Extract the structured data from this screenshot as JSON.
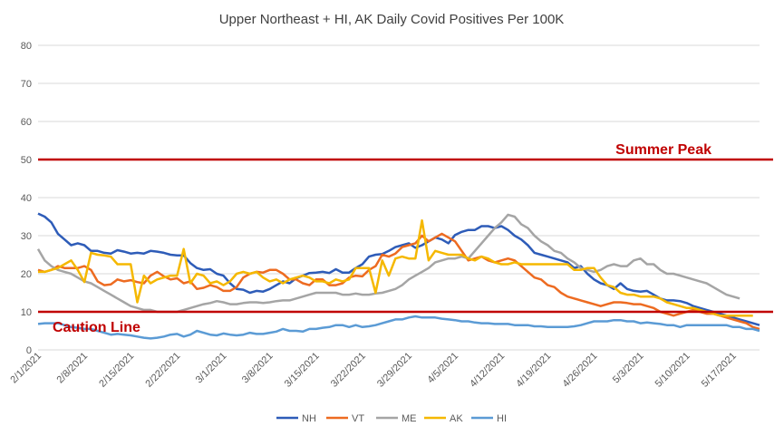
{
  "chart_data": {
    "type": "line",
    "title": "Upper Northeast + HI, AK Daily Covid Positives Per 100K",
    "xlabel": "",
    "ylabel": "",
    "ylim": [
      0,
      80
    ],
    "yticks": [
      0,
      10,
      20,
      30,
      40,
      50,
      60,
      70,
      80
    ],
    "grid": true,
    "legend": "bottom",
    "x_tick_labels": [
      "2/1/2021",
      "2/8/2021",
      "2/15/2021",
      "2/22/2021",
      "3/1/2021",
      "3/8/2021",
      "3/15/2021",
      "3/22/2021",
      "3/29/2021",
      "4/5/2021",
      "4/12/2021",
      "4/19/2021",
      "4/26/2021",
      "5/3/2021",
      "5/10/2021",
      "5/17/2021"
    ],
    "reference_lines": [
      {
        "label": "Summer Peak",
        "value": 50,
        "color": "#c00000"
      },
      {
        "label": "Caution Line",
        "value": 10,
        "color": "#c00000"
      }
    ],
    "series": [
      {
        "name": "NH",
        "color": "#2e5cb8",
        "values": [
          35.8,
          35,
          33.5,
          30.5,
          29,
          27.5,
          28,
          27.5,
          26,
          26,
          25.5,
          25.3,
          26.2,
          25.8,
          25.3,
          25.5,
          25.3,
          26,
          25.8,
          25.5,
          25,
          24.8,
          24.8,
          22.8,
          21.5,
          21,
          21.2,
          20,
          19.5,
          17.5,
          16,
          15.8,
          15,
          15.5,
          15.3,
          16,
          17,
          18,
          17.5,
          18.8,
          19.5,
          20.2,
          20.3,
          20.5,
          20.2,
          21.2,
          20.3,
          20.3,
          21.5,
          22.5,
          24.5,
          25,
          25.2,
          26,
          27,
          27.5,
          28,
          26.8,
          27.5,
          28.5,
          29.5,
          29,
          28,
          30.2,
          31,
          31.5,
          31.5,
          32.5,
          32.5,
          32,
          32.5,
          31.5,
          30,
          29,
          27.5,
          25.5,
          25,
          24.5,
          24,
          23.5,
          23,
          21.5,
          22,
          20,
          18.5,
          17.5,
          17,
          16,
          17.5,
          16,
          15.5,
          15.3,
          15.5,
          14.5,
          13.5,
          13,
          13,
          12.8,
          12.3,
          11.5,
          11,
          10.5,
          10,
          9.5,
          9,
          8.5,
          8,
          7.5,
          7,
          6.5
        ]
      },
      {
        "name": "VT",
        "color": "#ed6b21",
        "values": [
          21,
          20.5,
          21,
          22,
          21.5,
          21.5,
          21.5,
          22,
          21,
          18,
          17,
          17.2,
          18.5,
          18,
          18.3,
          17.8,
          17.5,
          19.5,
          20.5,
          19.3,
          18.5,
          18.8,
          17.5,
          18,
          16,
          16.3,
          17,
          16.5,
          15.5,
          15.5,
          16.5,
          19,
          20,
          20.5,
          20.3,
          21,
          21,
          20,
          18.5,
          18.5,
          17.5,
          17,
          18.5,
          18.5,
          17,
          17,
          17.5,
          19,
          19.5,
          19.3,
          21,
          22,
          25,
          24.5,
          25.3,
          27,
          27.5,
          28,
          30,
          28.5,
          29.5,
          30.5,
          29.5,
          28.5,
          26,
          23.5,
          24,
          24.5,
          23.5,
          23,
          23.5,
          24,
          23.5,
          22,
          20.5,
          19,
          18.5,
          17,
          16.5,
          15,
          14,
          13.5,
          13,
          12.5,
          12,
          11.5,
          12,
          12.5,
          12.5,
          12.3,
          12,
          12,
          11.5,
          11,
          10,
          9.5,
          9,
          9.5,
          10,
          10.5,
          10,
          9.5,
          9.5,
          9,
          8.5,
          8,
          7.5,
          7,
          6,
          5.5
        ]
      },
      {
        "name": "ME",
        "color": "#a5a5a5",
        "values": [
          26.5,
          23.5,
          22,
          21,
          20.5,
          20,
          19,
          18,
          17.5,
          16.5,
          15.5,
          14.5,
          13.5,
          12.5,
          11.5,
          11,
          10.5,
          10.5,
          10,
          10,
          10,
          10,
          10.5,
          11,
          11.5,
          12,
          12.3,
          12.8,
          12.5,
          12,
          12,
          12.3,
          12.5,
          12.5,
          12.3,
          12.5,
          12.8,
          13,
          13,
          13.5,
          14,
          14.5,
          15,
          15,
          15,
          15,
          14.5,
          14.5,
          14.8,
          14.5,
          14.5,
          14.8,
          15,
          15.5,
          16,
          17,
          18.5,
          19.5,
          20.5,
          21.5,
          23,
          23.5,
          24,
          24,
          24.5,
          24,
          26,
          28,
          30,
          32,
          33.5,
          35.5,
          35,
          33,
          32,
          30,
          28.5,
          27.5,
          26,
          25.5,
          24,
          23,
          21.5,
          21,
          20.5,
          21,
          22,
          22.5,
          22,
          22,
          23.5,
          24,
          22.5,
          22.5,
          21,
          20,
          20,
          19.5,
          19,
          18.5,
          18,
          17.5,
          16.5,
          15.5,
          14.5,
          14,
          13.5
        ]
      },
      {
        "name": "AK",
        "color": "#f5b800",
        "values": [
          20.5,
          20.5,
          21,
          21.5,
          22.5,
          23.5,
          21,
          17.8,
          25.5,
          25,
          24.8,
          24.5,
          22.5,
          22.5,
          22.5,
          12.5,
          19.5,
          17.5,
          18.5,
          19,
          19.5,
          19.5,
          26.5,
          17.5,
          20,
          19.5,
          17.5,
          18,
          17,
          18,
          20,
          20.5,
          20,
          20.5,
          19,
          18,
          18.5,
          17.5,
          18.5,
          19,
          19.5,
          19,
          18,
          18,
          17.5,
          18.5,
          18,
          18.5,
          21.5,
          21.5,
          21.5,
          15,
          23.5,
          19.5,
          24,
          24.5,
          24,
          24,
          34,
          23.5,
          26,
          25.5,
          25,
          25,
          25,
          24,
          23.5,
          24.5,
          24,
          23,
          22.5,
          22.5,
          23,
          22.5,
          22.5,
          22.5,
          22.5,
          22.5,
          22.5,
          22.5,
          22.5,
          21,
          21,
          21.5,
          21.5,
          19,
          17,
          16.5,
          15,
          14.5,
          14.5,
          14,
          14,
          14,
          13.5,
          12.5,
          12,
          11.5,
          11,
          11,
          10.5,
          10,
          9.5,
          9,
          9,
          9,
          9,
          9,
          9
        ]
      },
      {
        "name": "HI",
        "color": "#5b9bd5",
        "values": [
          6.8,
          7,
          7,
          7,
          6.5,
          6,
          5.8,
          5.5,
          5.5,
          5,
          4.5,
          4,
          4.2,
          4,
          3.8,
          3.5,
          3.2,
          3,
          3.2,
          3.5,
          4,
          4.2,
          3.5,
          4,
          5,
          4.5,
          4,
          3.8,
          4.3,
          4,
          3.8,
          4,
          4.5,
          4.2,
          4.2,
          4.5,
          4.8,
          5.5,
          5,
          5,
          4.8,
          5.5,
          5.5,
          5.8,
          6,
          6.5,
          6.5,
          6,
          6.5,
          6,
          6.2,
          6.5,
          7,
          7.5,
          8,
          8,
          8.5,
          8.8,
          8.5,
          8.5,
          8.5,
          8.2,
          8,
          7.8,
          7.5,
          7.5,
          7.2,
          7,
          7,
          6.8,
          6.8,
          6.8,
          6.5,
          6.5,
          6.5,
          6.2,
          6.2,
          6,
          6,
          6,
          6,
          6.2,
          6.5,
          7,
          7.5,
          7.5,
          7.5,
          7.8,
          7.8,
          7.5,
          7.5,
          7,
          7.2,
          7,
          6.8,
          6.5,
          6.5,
          6,
          6.5,
          6.5,
          6.5,
          6.5,
          6.5,
          6.5,
          6.5,
          6,
          6,
          5.5,
          5.5,
          5
        ]
      }
    ]
  }
}
